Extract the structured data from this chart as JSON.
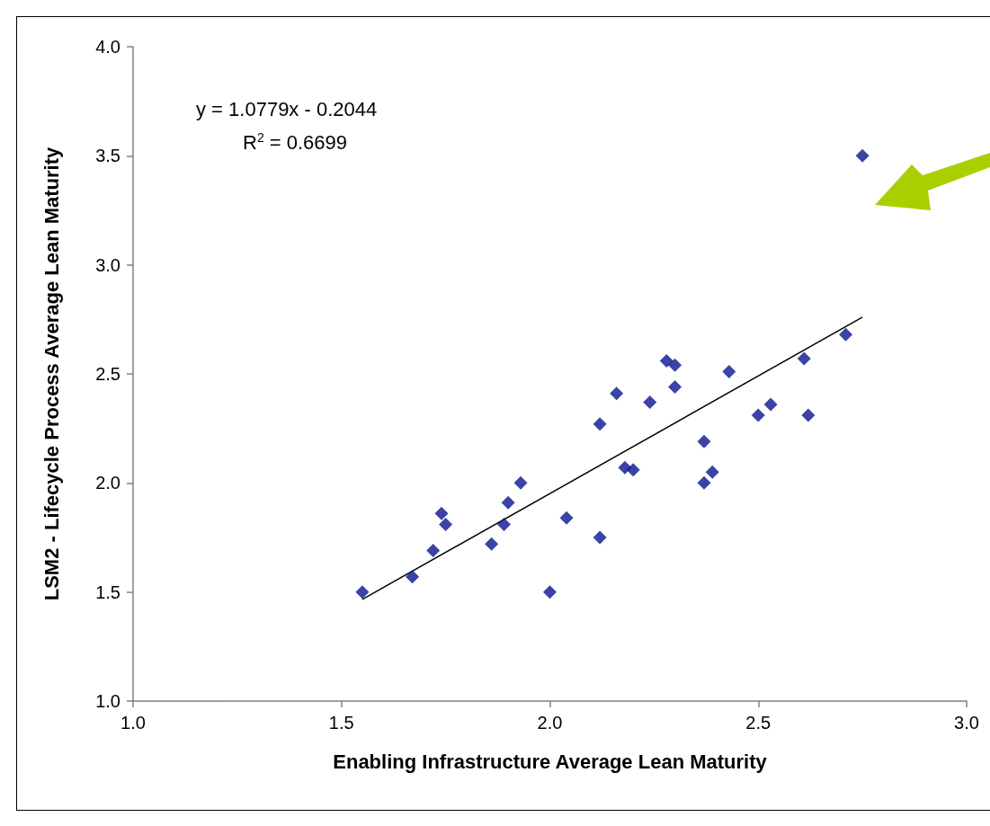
{
  "chart_data": {
    "type": "scatter",
    "xlabel": "Enabling Infrastructure Average Lean Maturity",
    "ylabel": "LSM2 - Lifecycle Process Average Lean Maturity",
    "annotations": [
      "y = 1.0779x - 0.2044",
      "R$^{2}$ = 0.6699"
    ],
    "xlim": [
      1,
      3
    ],
    "ylim": [
      1,
      4
    ],
    "xticks": [
      {
        "value": 1,
        "label": "1.0"
      },
      {
        "value": 1.5,
        "label": "1.5"
      },
      {
        "value": 2,
        "label": "2.0"
      },
      {
        "value": 2.5,
        "label": "2.5"
      },
      {
        "value": 3,
        "label": "3.0"
      }
    ],
    "yticks": [
      {
        "value": 1,
        "label": "1.0"
      },
      {
        "value": 1.5,
        "label": "1.5"
      },
      {
        "value": 2,
        "label": "2.0"
      },
      {
        "value": 2.5,
        "label": "2.5"
      },
      {
        "value": 3,
        "label": "3.0"
      },
      {
        "value": 3.5,
        "label": "3.5"
      },
      {
        "value": 4,
        "label": "4.0"
      }
    ],
    "grid": false,
    "marker": "diamond",
    "series": [
      {
        "color": "#0a1490",
        "x": [
          1.55,
          1.67,
          1.72,
          1.74,
          1.75,
          1.86,
          1.89,
          1.9,
          1.93,
          2.0,
          2.04,
          2.12,
          2.12,
          2.16,
          2.18,
          2.2,
          2.24,
          2.28,
          2.3,
          2.3,
          2.37,
          2.37,
          2.39,
          2.43,
          2.5,
          2.53,
          2.61,
          2.62,
          2.71,
          2.75
        ],
        "values": [
          1.5,
          1.57,
          1.69,
          1.86,
          1.81,
          1.72,
          1.81,
          1.91,
          2.0,
          1.5,
          1.84,
          1.75,
          2.27,
          2.41,
          2.07,
          2.06,
          2.37,
          2.56,
          2.54,
          2.44,
          2.19,
          2.0,
          2.05,
          2.51,
          2.31,
          2.36,
          2.57,
          2.31,
          2.68,
          3.5
        ]
      },
      {
        "type": "line",
        "color": "#000000",
        "marker": "none",
        "x": [
          1.55,
          2.75
        ],
        "values": [
          1.466,
          2.76
        ]
      }
    ]
  }
}
